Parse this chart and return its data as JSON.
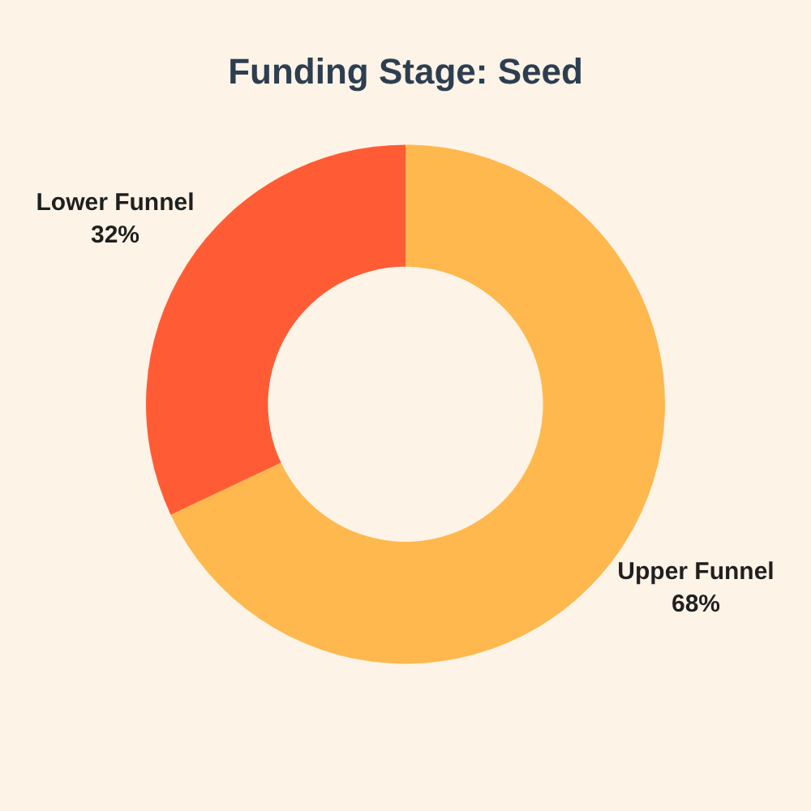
{
  "chart_data": {
    "type": "donut",
    "title": "Funding Stage: Seed",
    "categories": [
      "Upper Funnel",
      "Lower Funnel"
    ],
    "values": [
      68,
      32
    ],
    "value_labels": [
      "68%",
      "32%"
    ],
    "colors": [
      "#ffb84d",
      "#ff5c35"
    ],
    "legend": false
  }
}
